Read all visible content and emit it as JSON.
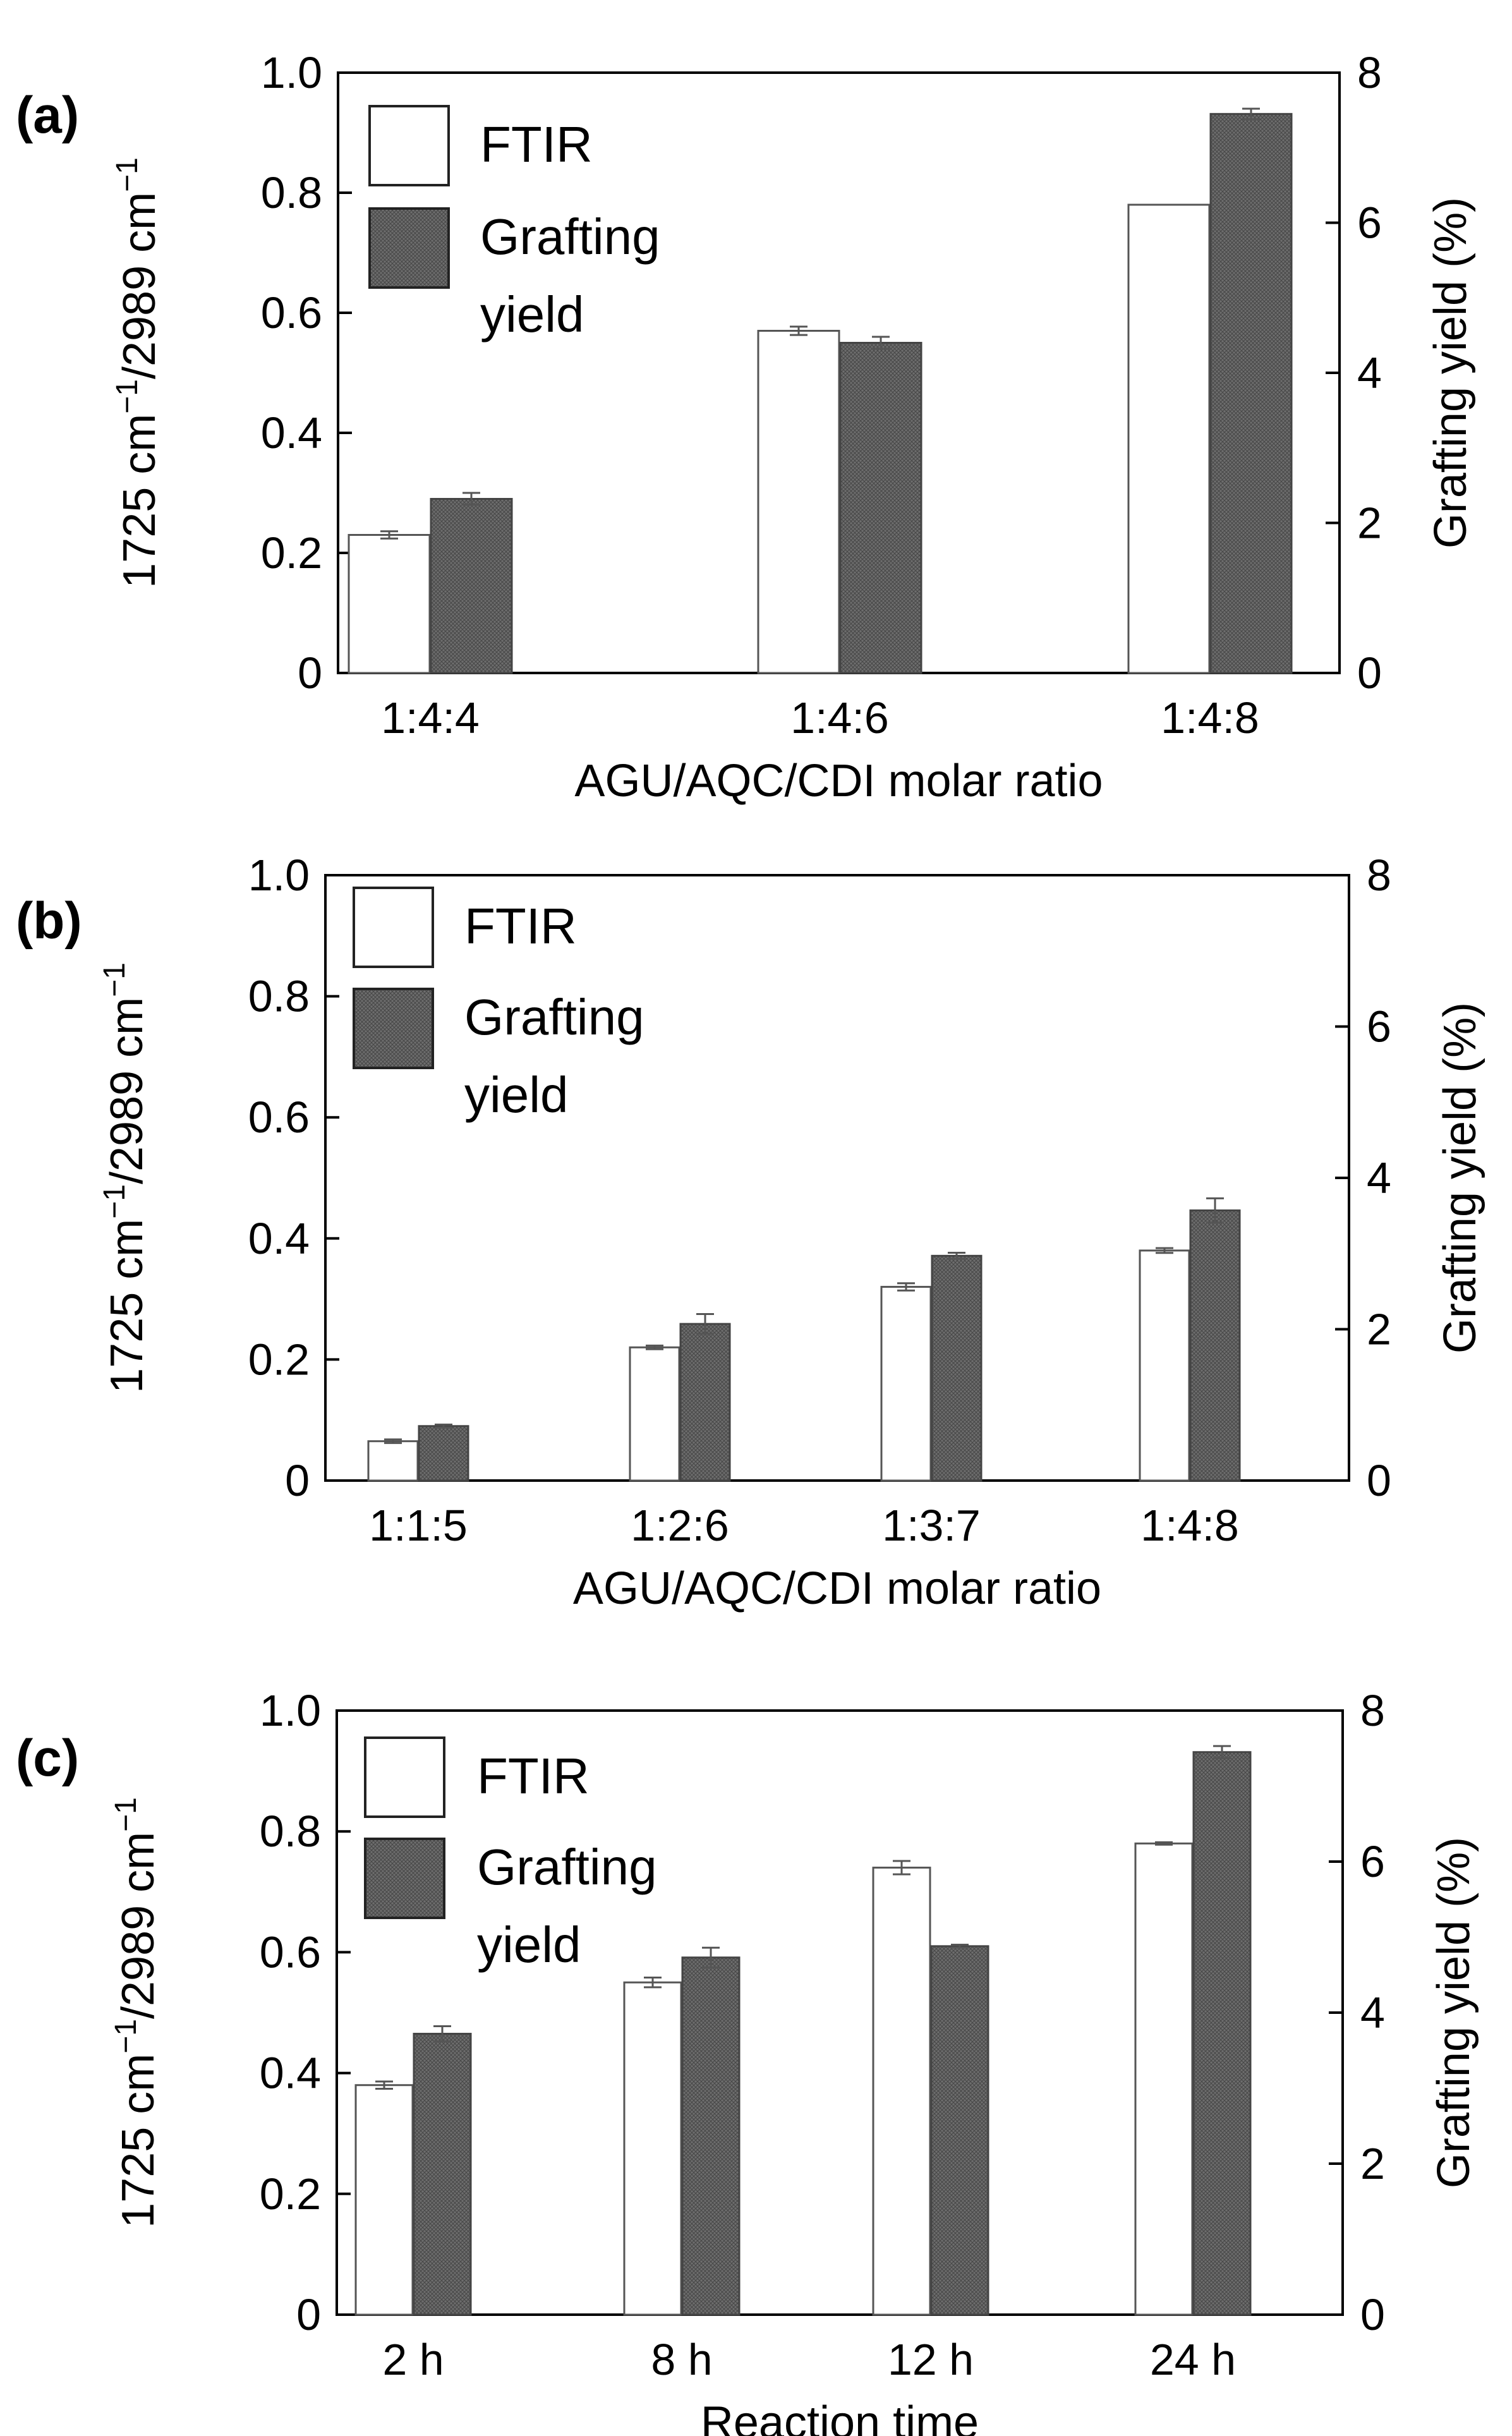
{
  "figure": {
    "background": "#ffffff",
    "styles": {
      "axis_color": "#000000",
      "ftir_fill": "#ffffff",
      "grafting_fill": "#6e6e6e",
      "grafting_hatch": "#4a4a4a",
      "error_bar_color": "#555555"
    }
  },
  "chart_data": [
    {
      "type": "bar",
      "panel_label": "(a)",
      "categories": [
        "1:4:4",
        "1:4:6",
        "1:4:8"
      ],
      "xlabel": "AGU/AQC/CDI molar ratio",
      "ylabel_left": {
        "prefix": "1725 cm",
        "sup1": "−1",
        "mid": "/2989 cm",
        "sup2": "−1"
      },
      "ylabel_right": "Grafting yield (%)",
      "ylim_left": [
        0,
        1.0
      ],
      "yticks_left": [
        "0",
        "0.2",
        "0.4",
        "0.6",
        "0.8",
        "1.0"
      ],
      "ylim_right": [
        0,
        8
      ],
      "yticks_right": [
        "0",
        "2",
        "4",
        "6",
        "8"
      ],
      "legend": {
        "placement": "top-left",
        "entries": [
          "FTIR",
          "Grafting",
          "yield"
        ]
      },
      "series": [
        {
          "name": "FTIR",
          "axis": "left",
          "style": "open",
          "values": [
            0.23,
            0.57,
            0.78
          ],
          "errors": [
            0.006,
            0.007,
            0.0
          ]
        },
        {
          "name": "Grafting yield",
          "axis": "right",
          "style": "hatched",
          "values": [
            2.32,
            4.4,
            7.45
          ],
          "errors": [
            0.08,
            0.08,
            0.07
          ]
        }
      ]
    },
    {
      "type": "bar",
      "panel_label": "(b)",
      "categories": [
        "1:1:5",
        "1:2:6",
        "1:3:7",
        "1:4:8"
      ],
      "xlabel": "AGU/AQC/CDI molar ratio",
      "ylabel_left": {
        "prefix": "1725 cm",
        "sup1": "−1",
        "mid": "/2989 cm",
        "sup2": "−1"
      },
      "ylabel_right": "Grafting yield (%)",
      "ylim_left": [
        0,
        1.0
      ],
      "yticks_left": [
        "0",
        "0.2",
        "0.4",
        "0.6",
        "0.8",
        "1.0"
      ],
      "ylim_right": [
        0,
        8
      ],
      "yticks_right": [
        "0",
        "2",
        "4",
        "6",
        "8"
      ],
      "legend": {
        "placement": "top-left",
        "entries": [
          "FTIR",
          "Grafting",
          "yield"
        ]
      },
      "series": [
        {
          "name": "FTIR",
          "axis": "left",
          "style": "open",
          "values": [
            0.065,
            0.22,
            0.32,
            0.38
          ],
          "errors": [
            0.003,
            0.003,
            0.006,
            0.004
          ]
        },
        {
          "name": "Grafting yield",
          "axis": "right",
          "style": "hatched",
          "values": [
            0.72,
            2.07,
            2.97,
            3.57
          ],
          "errors": [
            0.02,
            0.13,
            0.04,
            0.16
          ]
        }
      ]
    },
    {
      "type": "bar",
      "panel_label": "(c)",
      "categories": [
        "2 h",
        "8 h",
        "12 h",
        "24 h"
      ],
      "xlabel": "Reaction time",
      "ylabel_left": {
        "prefix": "1725 cm",
        "sup1": "−1",
        "mid": "/2989 cm",
        "sup2": "−1"
      },
      "ylabel_right": "Grafting yield (%)",
      "ylim_left": [
        0,
        1.0
      ],
      "yticks_left": [
        "0",
        "0.2",
        "0.4",
        "0.6",
        "0.8",
        "1.0"
      ],
      "ylim_right": [
        0,
        8
      ],
      "yticks_right": [
        "0",
        "2",
        "4",
        "6",
        "8"
      ],
      "legend": {
        "placement": "top-left",
        "entries": [
          "FTIR",
          "Grafting",
          "yield"
        ]
      },
      "series": [
        {
          "name": "FTIR",
          "axis": "left",
          "style": "open",
          "values": [
            0.38,
            0.55,
            0.74,
            0.78
          ],
          "errors": [
            0.006,
            0.008,
            0.011,
            0.002
          ]
        },
        {
          "name": "Grafting yield",
          "axis": "right",
          "style": "hatched",
          "values": [
            3.72,
            4.73,
            4.88,
            7.45
          ],
          "errors": [
            0.1,
            0.13,
            0.02,
            0.08
          ]
        }
      ]
    }
  ]
}
